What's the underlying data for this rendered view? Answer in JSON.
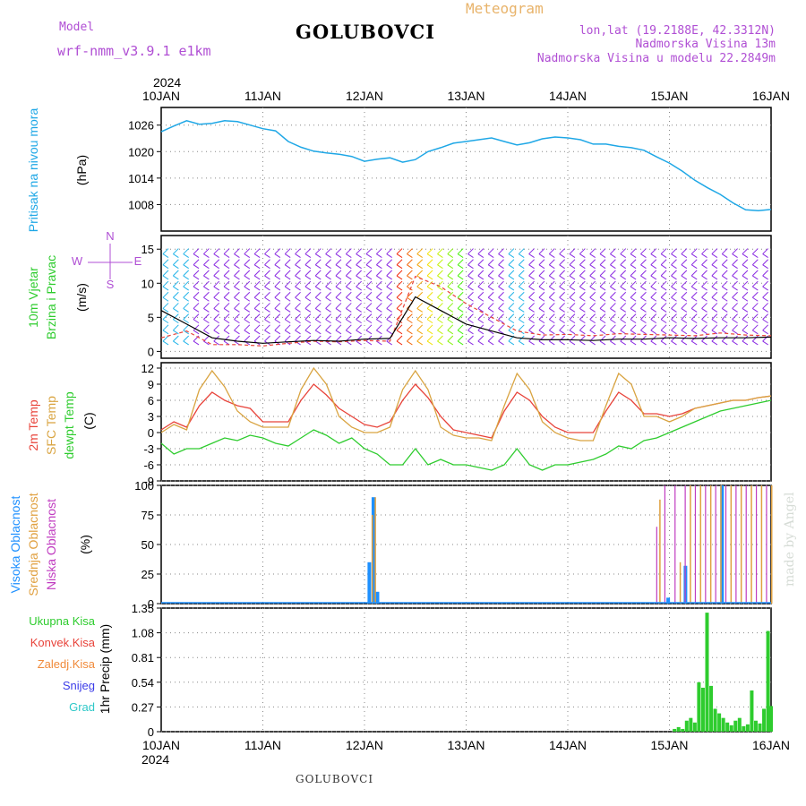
{
  "header": {
    "model_label": "Model",
    "model_name": "wrf-nmm_v3.9.1 e1km",
    "station": "GOLUBOVCI",
    "meteogram": "Meteogram",
    "lonlat": "lon,lat (19.2188E, 42.3312N)",
    "elevation": "Nadmorska Visina 13m",
    "model_elevation": "Nadmorska Visina u modelu 22.2849m",
    "footer_station": "GOLUBOVCI",
    "watermark": "made by Angel"
  },
  "colors": {
    "pressure": "#1ea7e6",
    "temp2m": "#e8433a",
    "sfc_temp": "#d9a441",
    "dewpt": "#2ecc2e",
    "low_cloud": "#c03cc0",
    "mid_cloud": "#e0a040",
    "high_cloud": "#1e90ff",
    "precip_total": "#2ecc2e",
    "wind_barb_purple": "#8a2be2",
    "header_purple": "#b04fd4",
    "header_orange": "#e8b36a"
  },
  "xaxis": {
    "year": "2024",
    "ticks": [
      "10JAN",
      "11JAN",
      "12JAN",
      "13JAN",
      "14JAN",
      "15JAN",
      "16JAN"
    ]
  },
  "chart_data": [
    {
      "type": "line",
      "id": "pressure",
      "ylabel": "Pritisak na nivou mora",
      "unit": "(hPa)",
      "ylim": [
        1002,
        1030
      ],
      "yticks": [
        1008,
        1014,
        1020,
        1026
      ],
      "x": [
        0,
        0.125,
        0.25,
        0.375,
        0.5,
        0.625,
        0.75,
        0.875,
        1,
        1.125,
        1.25,
        1.375,
        1.5,
        1.625,
        1.75,
        1.875,
        2,
        2.125,
        2.25,
        2.375,
        2.5,
        2.625,
        2.75,
        2.875,
        3,
        3.125,
        3.25,
        3.375,
        3.5,
        3.625,
        3.75,
        3.875,
        4,
        4.125,
        4.25,
        4.375,
        4.5,
        4.625,
        4.75,
        4.875,
        5,
        5.125,
        5.25,
        5.375,
        5.5,
        5.625,
        5.75,
        5.875,
        6
      ],
      "series": [
        {
          "values": [
            1024.5,
            1025.8,
            1027,
            1026.2,
            1026.4,
            1027,
            1026.8,
            1026,
            1025.2,
            1024.7,
            1022.3,
            1021,
            1020.1,
            1019.7,
            1019.4,
            1018.9,
            1017.8,
            1018.3,
            1018.6,
            1017.6,
            1018.2,
            1020,
            1020.9,
            1021.9,
            1022.3,
            1022.7,
            1023.1,
            1022.3,
            1021.5,
            1022,
            1022.9,
            1023.3,
            1023.1,
            1022.7,
            1021.7,
            1021.7,
            1021.2,
            1020.9,
            1020.3,
            1018.8,
            1017.4,
            1015.6,
            1013.5,
            1011.8,
            1010.3,
            1008.4,
            1006.8,
            1006.6,
            1006.9
          ]
        }
      ]
    },
    {
      "type": "line",
      "id": "wind",
      "ylabel": "10m Vjetar Brzina i Pravac",
      "unit": "(m/s)",
      "ylim": [
        -1,
        17
      ],
      "yticks": [
        0,
        5,
        10,
        15
      ],
      "x": [
        0,
        0.25,
        0.5,
        0.75,
        1,
        1.25,
        1.5,
        1.75,
        2,
        2.25,
        2.5,
        2.75,
        3,
        3.25,
        3.5,
        3.75,
        4,
        4.25,
        4.5,
        4.75,
        5,
        5.25,
        5.5,
        5.75,
        6
      ],
      "series": [
        {
          "values": [
            2,
            3,
            1,
            1,
            0.8,
            1.2,
            1.5,
            1.4,
            1.6,
            1.5,
            11,
            9.5,
            7,
            5,
            3,
            2.4,
            2.5,
            2.3,
            2.6,
            2.5,
            2.4,
            2.3,
            2.7,
            2.4,
            2.3
          ]
        },
        {
          "values": [
            6,
            4,
            2,
            1.5,
            1.2,
            1.4,
            1.6,
            1.5,
            1.8,
            1.9,
            8,
            6,
            4,
            3,
            2,
            1.7,
            1.7,
            1.6,
            1.8,
            1.8,
            2,
            1.9,
            2,
            2,
            2.1
          ]
        }
      ]
    },
    {
      "type": "line",
      "id": "temperature",
      "ylabel": "2m Temp / SFC Temp / dewpt Temp",
      "unit": "(C)",
      "ylim": [
        -9,
        13
      ],
      "yticks": [
        -9,
        -6,
        -3,
        0,
        3,
        6,
        9,
        12
      ],
      "x": [
        0,
        0.125,
        0.25,
        0.375,
        0.5,
        0.625,
        0.75,
        0.875,
        1,
        1.125,
        1.25,
        1.375,
        1.5,
        1.625,
        1.75,
        1.875,
        2,
        2.125,
        2.25,
        2.375,
        2.5,
        2.625,
        2.75,
        2.875,
        3,
        3.125,
        3.25,
        3.375,
        3.5,
        3.625,
        3.75,
        3.875,
        4,
        4.125,
        4.25,
        4.375,
        4.5,
        4.625,
        4.75,
        4.875,
        5,
        5.125,
        5.25,
        5.375,
        5.5,
        5.625,
        5.75,
        5.875,
        6
      ],
      "series": [
        {
          "name": "2m Temp",
          "values": [
            0.5,
            2,
            1,
            5,
            7.5,
            6,
            5,
            4.5,
            2,
            2,
            2,
            6,
            9,
            7,
            4.5,
            3,
            1.5,
            1,
            2,
            6,
            9,
            6.5,
            3,
            0.5,
            0,
            -0.5,
            -1,
            4,
            7.5,
            6,
            3,
            1,
            0,
            0,
            0,
            4,
            7.5,
            6,
            3.5,
            3.5,
            3,
            3.5,
            4.5,
            5,
            5.5,
            6,
            6,
            6.5,
            6.8
          ]
        },
        {
          "name": "SFC Temp",
          "values": [
            0,
            1.5,
            0.5,
            8,
            11.5,
            8.5,
            4,
            2,
            1,
            1,
            1,
            8,
            12,
            9,
            3,
            1,
            0,
            0,
            1,
            8,
            11.5,
            8,
            1,
            -0.5,
            -1,
            -1,
            -1.5,
            5,
            11,
            8,
            2,
            0,
            -1,
            -1.5,
            -1.5,
            5,
            11,
            9,
            3,
            3,
            2,
            3,
            4.5,
            5,
            5.5,
            6,
            6,
            6.5,
            6.8
          ]
        },
        {
          "name": "dewpt Temp",
          "values": [
            -2,
            -4,
            -3,
            -3,
            -2,
            -1,
            -1.5,
            -0.5,
            -1,
            -2,
            -2.5,
            -1,
            0.5,
            -0.5,
            -2,
            -1,
            -3,
            -4,
            -6,
            -6,
            -3,
            -6,
            -5,
            -6,
            -6,
            -6.5,
            -7,
            -6,
            -3,
            -6,
            -7,
            -6,
            -6,
            -5.5,
            -5,
            -4,
            -2.5,
            -3,
            -1.5,
            -1,
            0,
            1,
            2,
            3,
            4,
            4.5,
            5,
            5.5,
            6
          ]
        }
      ]
    },
    {
      "type": "bar",
      "id": "clouds",
      "ylabel": "Visoka Oblacnost / Srednja Oblacnost / Niska Oblacnost",
      "unit": "(%)",
      "ylim": [
        0,
        100
      ],
      "yticks": [
        0,
        25,
        50,
        75,
        100
      ],
      "series": [
        {
          "name": "Visoka Oblacnost",
          "x": [
            2.03,
            2.07,
            2.11,
            4.97,
            5.14,
            5.5
          ],
          "values": [
            35,
            90,
            10,
            5,
            32,
            100
          ]
        },
        {
          "name": "Srednja Oblacnost",
          "x": [
            2.07,
            2.1,
            4.9,
            5.1,
            5.2,
            5.3,
            5.4,
            5.5,
            5.6,
            5.7,
            5.8,
            5.9,
            6
          ],
          "values": [
            75,
            90,
            88,
            35,
            100,
            100,
            100,
            100,
            100,
            100,
            100,
            100,
            100
          ]
        },
        {
          "name": "Niska Oblacnost",
          "x": [
            4.87,
            4.95,
            5.05,
            5.15,
            5.25,
            5.35,
            5.45,
            5.55,
            5.65,
            5.75,
            5.85,
            5.95
          ],
          "values": [
            65,
            100,
            100,
            100,
            100,
            100,
            100,
            100,
            100,
            100,
            100,
            100
          ]
        }
      ]
    },
    {
      "type": "bar",
      "id": "precip",
      "ylabel": "1hr Precip",
      "unit": "(mm)",
      "ylim": [
        0,
        1.35
      ],
      "yticks": [
        0,
        0.27,
        0.54,
        0.81,
        1.08,
        1.35
      ],
      "legend": [
        "Ukupna Kisa",
        "Konvek.Kisa",
        "Zaledj.Kisa",
        "Snijeg",
        "Grad"
      ],
      "x": [
        5.05,
        5.09,
        5.13,
        5.17,
        5.21,
        5.25,
        5.29,
        5.33,
        5.37,
        5.41,
        5.45,
        5.49,
        5.53,
        5.57,
        5.61,
        5.65,
        5.69,
        5.73,
        5.77,
        5.81,
        5.85,
        5.89,
        5.93,
        5.97,
        6.0
      ],
      "series": [
        {
          "name": "Ukupna Kisa",
          "values": [
            0.03,
            0.05,
            0.03,
            0.12,
            0.15,
            0.1,
            0.54,
            0.48,
            1.3,
            0.5,
            0.25,
            0.2,
            0.15,
            0.1,
            0.07,
            0.12,
            0.15,
            0.06,
            0.08,
            0.45,
            0.12,
            0.09,
            0.25,
            1.1,
            0.28
          ]
        }
      ]
    }
  ]
}
